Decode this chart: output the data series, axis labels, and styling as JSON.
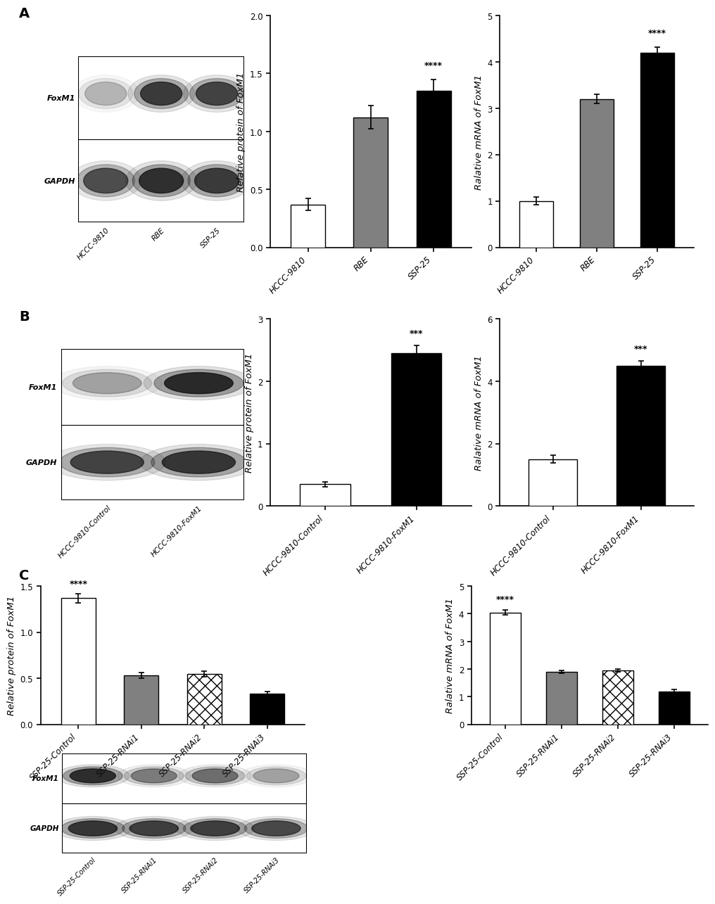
{
  "panel_A": {
    "blot_categories": [
      "HCCC-9810",
      "RBE",
      "SSP-25"
    ],
    "protein_values": [
      0.37,
      1.12,
      1.35
    ],
    "protein_errors": [
      0.05,
      0.1,
      0.1
    ],
    "protein_ylim": [
      0,
      2.0
    ],
    "protein_yticks": [
      0.0,
      0.5,
      1.0,
      1.5,
      2.0
    ],
    "protein_ylabel": "Relative protein of FoxM1",
    "protein_colors": [
      "white",
      "gray",
      "black"
    ],
    "mrna_values": [
      1.0,
      3.2,
      4.2
    ],
    "mrna_errors": [
      0.08,
      0.1,
      0.12
    ],
    "mrna_ylim": [
      0,
      5
    ],
    "mrna_yticks": [
      0,
      1,
      2,
      3,
      4,
      5
    ],
    "mrna_ylabel": "Ralative mRNA of FoxM1",
    "mrna_colors": [
      "white",
      "gray",
      "black"
    ],
    "sig_protein_bar": 2,
    "sig_protein_text": "****",
    "sig_mrna_bar": 2,
    "sig_mrna_text": "****"
  },
  "panel_B": {
    "blot_categories": [
      "HCCC-9810-Control",
      "HCCC-9810-FoxM1"
    ],
    "protein_values": [
      0.35,
      2.45
    ],
    "protein_errors": [
      0.04,
      0.12
    ],
    "protein_ylim": [
      0,
      3
    ],
    "protein_yticks": [
      0,
      1,
      2,
      3
    ],
    "protein_ylabel": "Relative protein of FoxM1",
    "protein_colors": [
      "white",
      "black"
    ],
    "mrna_values": [
      1.5,
      4.5
    ],
    "mrna_errors": [
      0.12,
      0.15
    ],
    "mrna_ylim": [
      0,
      6
    ],
    "mrna_yticks": [
      0,
      2,
      4,
      6
    ],
    "mrna_ylabel": "Ralative mRNA of FoxM1",
    "mrna_colors": [
      "white",
      "black"
    ],
    "sig_protein_bar": 1,
    "sig_protein_text": "***",
    "sig_mrna_bar": 1,
    "sig_mrna_text": "***"
  },
  "panel_C": {
    "blot_categories": [
      "SSP-25-Control",
      "SSP-25-RNAi1",
      "SSP-25-RNAi2",
      "SSP-25-RNAi3"
    ],
    "protein_values": [
      1.37,
      0.53,
      0.55,
      0.33
    ],
    "protein_errors": [
      0.05,
      0.03,
      0.03,
      0.03
    ],
    "protein_ylim": [
      0,
      1.5
    ],
    "protein_yticks": [
      0.0,
      0.5,
      1.0,
      1.5
    ],
    "protein_ylabel": "Relative protein of FoxM1",
    "protein_colors": [
      "white",
      "gray",
      "checkered",
      "black"
    ],
    "mrna_values": [
      4.05,
      1.9,
      1.95,
      1.2
    ],
    "mrna_errors": [
      0.1,
      0.06,
      0.06,
      0.07
    ],
    "mrna_ylim": [
      0,
      5
    ],
    "mrna_yticks": [
      0,
      1,
      2,
      3,
      4,
      5
    ],
    "mrna_ylabel": "Ralative mRNA of FoxM1",
    "mrna_colors": [
      "white",
      "gray",
      "checkered",
      "black"
    ],
    "sig_protein_bar": 0,
    "sig_protein_text": "****",
    "sig_mrna_bar": 0,
    "sig_mrna_text": "****"
  },
  "bg_color": "#ffffff",
  "tick_label_fontsize": 8.5,
  "axis_label_fontsize": 9.5,
  "panel_label_fontsize": 14
}
